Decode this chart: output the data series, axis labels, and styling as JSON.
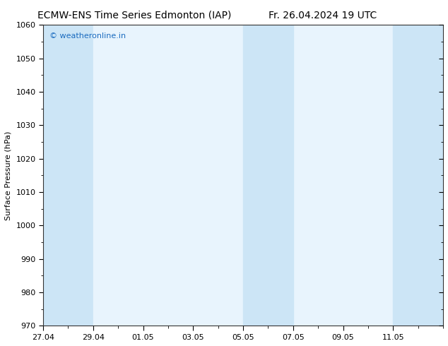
{
  "title_left": "ECMW-ENS Time Series Edmonton (IAP)",
  "title_right": "Fr. 26.04.2024 19 UTC",
  "ylabel": "Surface Pressure (hPa)",
  "ylim": [
    970,
    1060
  ],
  "yticks": [
    970,
    980,
    990,
    1000,
    1010,
    1020,
    1030,
    1040,
    1050,
    1060
  ],
  "xlim": [
    0,
    16
  ],
  "x_tick_labels": [
    "27.04",
    "29.04",
    "01.05",
    "03.05",
    "05.05",
    "07.05",
    "09.05",
    "11.05"
  ],
  "x_tick_positions": [
    0,
    2,
    4,
    6,
    8,
    10,
    12,
    14
  ],
  "plot_bg_color": "#e8f4fd",
  "shade_bands": [
    {
      "x_start": 0,
      "x_end": 2
    },
    {
      "x_start": 2,
      "x_end": 4
    },
    {
      "x_start": 8,
      "x_end": 10
    },
    {
      "x_start": 14,
      "x_end": 16
    }
  ],
  "band_colors": [
    "#cce5f6",
    "#e8f4fd",
    "#cce5f6",
    "#cce5f6"
  ],
  "background_color": "#ffffff",
  "watermark": "© weatheronline.in",
  "watermark_color": "#1a6bbf",
  "title_fontsize": 10,
  "axis_label_fontsize": 8,
  "tick_fontsize": 8,
  "watermark_fontsize": 8
}
